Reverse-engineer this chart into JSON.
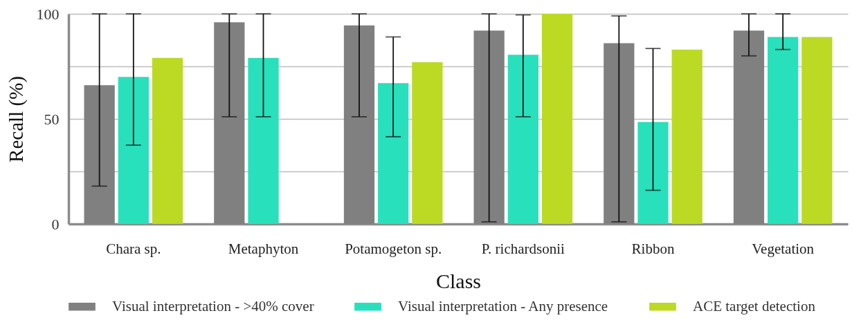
{
  "chart_data": {
    "type": "bar",
    "xlabel": "Class",
    "ylabel": "Recall (%)",
    "categories": [
      "Chara sp.",
      "Metaphyton",
      "Potamogeton sp.",
      "P. richardsonii",
      "Ribbon",
      "Vegetation"
    ],
    "series": [
      {
        "name": "Visual interpretation - >40% cover",
        "color": "#808080",
        "values": [
          66,
          96,
          94.5,
          92,
          86,
          92
        ],
        "errors": [
          [
            18,
            100
          ],
          [
            51,
            100
          ],
          [
            51,
            100
          ],
          [
            1,
            100
          ],
          [
            1,
            99
          ],
          [
            80,
            100
          ]
        ]
      },
      {
        "name": "Visual interpretation - Any presence",
        "color": "#28e0bc",
        "values": [
          70,
          79,
          67,
          80.5,
          48.5,
          89
        ],
        "errors": [
          [
            37.5,
            100
          ],
          [
            51,
            100
          ],
          [
            41.5,
            89
          ],
          [
            51,
            99.5
          ],
          [
            16,
            83.5
          ],
          [
            83,
            100
          ]
        ]
      },
      {
        "name": "ACE target detection",
        "color": "#bcd924",
        "values": [
          79,
          null,
          77,
          100,
          83,
          89
        ]
      }
    ],
    "ylim": [
      0,
      100
    ],
    "yticks": [
      0,
      {
        "value": 25,
        "label": null
      },
      50,
      {
        "value": 75,
        "label": null
      },
      100
    ],
    "grid": "y",
    "legend": "bottom"
  }
}
